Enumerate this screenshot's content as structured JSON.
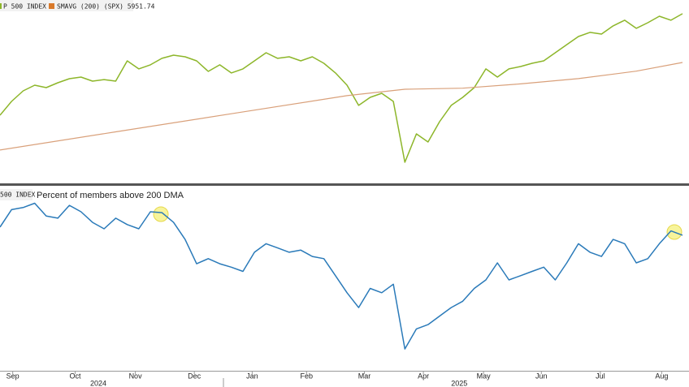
{
  "chart_data": [
    {
      "type": "line",
      "series": [
        {
          "name": "P 500 INDEX",
          "color": "#8db62a",
          "values": [
            5456,
            5586,
            5685,
            5738,
            5715,
            5761,
            5799,
            5814,
            5776,
            5791,
            5776,
            5967,
            5891,
            5929,
            5990,
            6020,
            6005,
            5967,
            5868,
            5929,
            5853,
            5891,
            5967,
            6043,
            5990,
            6005,
            5967,
            6005,
            5944,
            5853,
            5738,
            5548,
            5624,
            5662,
            5586,
            5014,
            5281,
            5205,
            5395,
            5548,
            5624,
            5715,
            5891,
            5814,
            5891,
            5913,
            5944,
            5967,
            6043,
            6119,
            6195,
            6234,
            6218,
            6295,
            6348,
            6272,
            6325,
            6386,
            6348,
            6409
          ]
        },
        {
          "name": "SMAVG (200) (SPX) 5951.74",
          "color": "#d9a07a",
          "x": [
            0,
            10,
            20,
            30,
            35,
            40,
            45,
            50,
            55,
            59
          ],
          "values": [
            5129,
            5300,
            5470,
            5640,
            5700,
            5710,
            5750,
            5800,
            5870,
            5951.74
          ]
        }
      ],
      "xlim": [
        0,
        59
      ],
      "ylim": [
        4900,
        6500
      ]
    },
    {
      "type": "line",
      "series": [
        {
          "name": "500 INDEX",
          "color": "#2a7ab9",
          "values": [
            74.8,
            83,
            84,
            86,
            80,
            79,
            85,
            82,
            77,
            74,
            79,
            76,
            74,
            82,
            81.6,
            77,
            69,
            57.6,
            60,
            57.6,
            56,
            54,
            63,
            67,
            65,
            63,
            64,
            61,
            60,
            52,
            44,
            37,
            46,
            44,
            48,
            17.6,
            27,
            29,
            33,
            37,
            40,
            46,
            50,
            58,
            50,
            52,
            54,
            56,
            50,
            58,
            67,
            63,
            61,
            69,
            67,
            58,
            60,
            67,
            73,
            71
          ]
        }
      ],
      "title": "Percent of members above 200 DMA",
      "xlim": [
        0,
        59
      ],
      "ylim": [
        10,
        90
      ],
      "xticks": [
        {
          "value": 1.1,
          "label": "Sep"
        },
        {
          "value": 6.5,
          "label": "Oct"
        },
        {
          "value": 11.7,
          "label": "Nov"
        },
        {
          "value": 16.8,
          "label": "Dec"
        },
        {
          "value": 21.8,
          "label": "Jan"
        },
        {
          "value": 26.5,
          "label": "Feb"
        },
        {
          "value": 31.5,
          "label": "Mar"
        },
        {
          "value": 36.6,
          "label": "Apr"
        },
        {
          "value": 41.8,
          "label": "May"
        },
        {
          "value": 46.8,
          "label": "Jun"
        },
        {
          "value": 51.9,
          "label": "Jul"
        },
        {
          "value": 57.2,
          "label": "Aug"
        }
      ],
      "year_ticks": [
        {
          "value": 8.5,
          "label": "2024"
        },
        {
          "value": 39.7,
          "label": "2025"
        }
      ]
    }
  ]
}
